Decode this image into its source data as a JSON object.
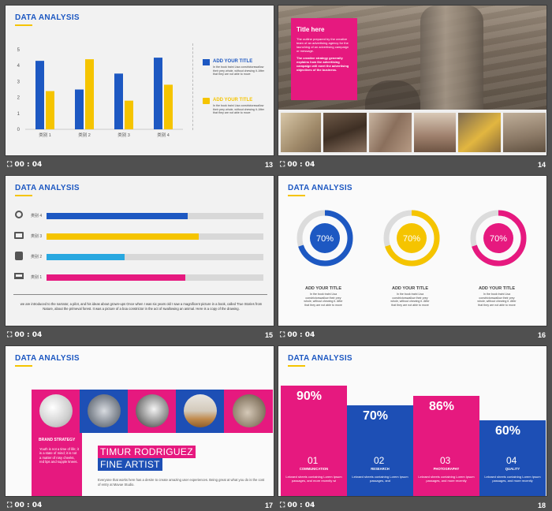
{
  "footer": {
    "time": "00 : 04"
  },
  "slides": [
    {
      "number": "13",
      "title": "DATA  ANALYSIS",
      "chart_data": {
        "type": "bar",
        "categories": [
          "类别 1",
          "类别 2",
          "类别 3",
          "类别 4"
        ],
        "series": [
          {
            "values": [
              4.3,
              2.5,
              3.5,
              4.5
            ],
            "color": "#1d58c2"
          },
          {
            "values": [
              2.4,
              4.4,
              1.8,
              2.8
            ],
            "color": "#f5c400"
          }
        ],
        "y_ticks": [
          "0",
          "1",
          "2",
          "3",
          "4",
          "5"
        ],
        "ylim": [
          0,
          5
        ]
      },
      "side": [
        {
          "heading": "ADD YOUR TITLE",
          "text": "In the book traini  Lisa constrictorswallow their prey whole, without chewing it. After that they are not able to move",
          "color": "#1d58c2"
        },
        {
          "heading": "ADD YOUR TITLE",
          "text": "In the book traini  Lisa constrictorswallow their prey whole, without chewing it. After that they are not able to move",
          "color": "#f5c400"
        }
      ]
    },
    {
      "number": "14",
      "box_title": "Title here",
      "box_text": "The outline prepared by the creative team of an advertising agency for the launching of an advertising campaign or message.",
      "box_text2": "The creative strategy generally explains how the advertising campaign will meet the advertising objectives of the business."
    },
    {
      "number": "15",
      "title": "DATA  ANALYSIS",
      "bars": [
        {
          "label": "类别 4",
          "value": 0.65,
          "color": "#1d58c2",
          "icon": "trophy-icon"
        },
        {
          "label": "类别 3",
          "value": 0.7,
          "color": "#f5c400",
          "icon": "briefcase-icon"
        },
        {
          "label": "类别 2",
          "value": 0.36,
          "color": "#29a8e0",
          "icon": "phone-icon"
        },
        {
          "label": "类别 1",
          "value": 0.64,
          "color": "#e6197f",
          "icon": "presentation-icon"
        }
      ],
      "paragraph": "we are introduced to the narrator, a pilot, and his ideas about grown-ups Once when I was six years old I saw a magnificent picture in a book, called True Stories from Nature, about the primeval forest. It was a picture of a boa constrictor in the act of swallowing an animal. Here is a copy of the drawing."
    },
    {
      "number": "16",
      "title": "DATA  ANALYSIS",
      "rings": [
        {
          "value": 0.7,
          "label": "70%",
          "color": "#1d58c2",
          "heading": "ADD YOUR TITLE",
          "text": "In the book traini  Lisa constrictorswallow their prey whole, without chewing it. After that they are not able to move"
        },
        {
          "value": 0.7,
          "label": "70%",
          "color": "#f5c400",
          "heading": "ADD YOUR TITLE",
          "text": "In the book traini  Lisa constrictorswallow their prey whole, without chewing it. After that they are not able to move"
        },
        {
          "value": 0.7,
          "label": "70%",
          "color": "#e6197f",
          "heading": "ADD YOUR TITLE",
          "text": "In the book traini  Lisa constrictorswallow their prey whole, without chewing it. After that they are not able to move"
        }
      ]
    },
    {
      "number": "17",
      "title": "DATA ANALYSIS",
      "brand_title": "BRAND STRATEGY",
      "brand_text": "Youth is not a time of life; it is a state of mind; it is not a matter of rosy cheeks, red lips and supple knees.",
      "name": "TIMUR RODRIGUEZ",
      "role": "FINE ARTIST",
      "desc": "Everyone that works here has a desire to create amazing user experiences. Being great at what you do is the cost of entry at Mavue Studio."
    },
    {
      "number": "18",
      "title": "DATA  ANALYSIS",
      "columns": [
        {
          "percent": "90%",
          "num": "01",
          "label": "COMMUNICATION",
          "text": "Lekraed sheets containing Lorem Ipsum passages, and more recently wi",
          "color": "#e6197f"
        },
        {
          "percent": "70%",
          "num": "02",
          "label": "RESEARCH",
          "text": "Lekraed sheets containing Lorem Ipsum passages, and",
          "color": "#1d4fb5"
        },
        {
          "percent": "86%",
          "num": "03",
          "label": "PHOTOGRAPHY",
          "text": "Lekraed sheets containing Lorem Ipsum passages, and more recently",
          "color": "#e6197f"
        },
        {
          "percent": "60%",
          "num": "04",
          "label": "QUALITY",
          "text": "Lekraed sheets containing Lorem Ipsum passages, and more recently",
          "color": "#1d4fb5"
        }
      ]
    }
  ]
}
